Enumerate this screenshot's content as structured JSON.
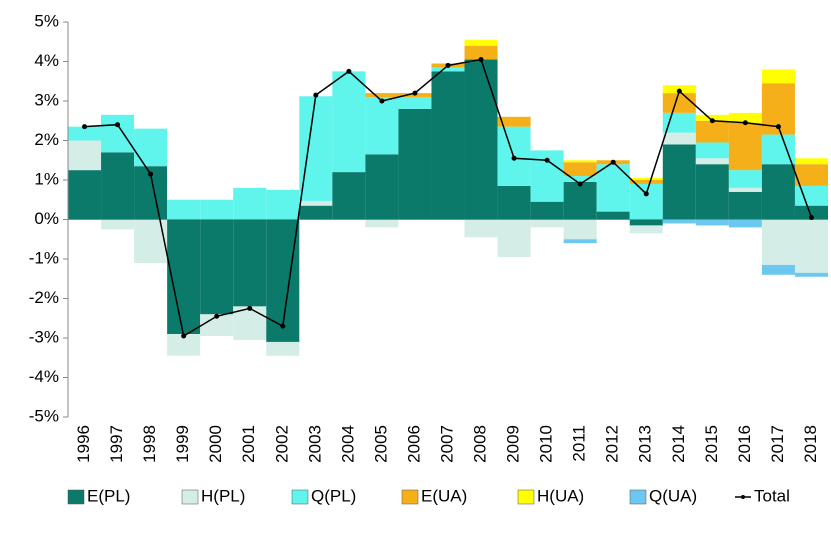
{
  "chart_data": {
    "type": "bar",
    "stacked": true,
    "categories": [
      "1996",
      "1997",
      "1998",
      "1999",
      "2000",
      "2001",
      "2002",
      "2003",
      "2004",
      "2005",
      "2006",
      "2007",
      "2008",
      "2009",
      "2010",
      "2011",
      "2012",
      "2013",
      "2014",
      "2015",
      "2016",
      "2017",
      "2018"
    ],
    "series": [
      {
        "name": "E(PL)",
        "color": "#0b7a6b",
        "values": [
          1.25,
          1.7,
          1.35,
          -2.9,
          -2.4,
          -2.2,
          -3.1,
          0.35,
          1.2,
          1.65,
          2.8,
          3.75,
          4.05,
          0.85,
          0.45,
          0.95,
          0.2,
          -0.15,
          1.9,
          1.4,
          0.7,
          1.4,
          0.35
        ]
      },
      {
        "name": "H(PL)",
        "color": "#d5ede7",
        "values": [
          0.75,
          -0.25,
          -1.1,
          -0.55,
          -0.55,
          -0.85,
          -0.35,
          0.12,
          0,
          -0.2,
          0,
          0,
          -0.45,
          -0.95,
          -0.2,
          -0.5,
          0,
          -0.2,
          0.3,
          0.15,
          0.1,
          -1.15,
          -1.35
        ]
      },
      {
        "name": "Q(PL)",
        "color": "#5ff4ec",
        "values": [
          0.35,
          0.95,
          0.95,
          0.5,
          0.5,
          0.8,
          0.75,
          2.65,
          2.55,
          1.45,
          0.3,
          0.1,
          0,
          1.5,
          1.3,
          0.15,
          1.2,
          0.9,
          0.5,
          0.4,
          0.45,
          0.75,
          0.5
        ]
      },
      {
        "name": "E(UA)",
        "color": "#f5b019",
        "values": [
          0,
          0,
          0,
          0,
          0,
          0,
          0,
          0,
          0,
          0.1,
          0.1,
          0.1,
          0.35,
          0.25,
          0,
          0.35,
          0.1,
          0.1,
          0.5,
          0.55,
          1.2,
          1.3,
          0.55
        ]
      },
      {
        "name": "H(UA)",
        "color": "#ffff00",
        "values": [
          0,
          0,
          0,
          0,
          0,
          0,
          0,
          0,
          0,
          0,
          0,
          0,
          0.15,
          0,
          0,
          0.05,
          0,
          0.05,
          0.2,
          0.15,
          0.25,
          0.35,
          0.15
        ]
      },
      {
        "name": "Q(UA)",
        "color": "#6cc8f0",
        "values": [
          0,
          0,
          0,
          0,
          0,
          0,
          0,
          0,
          0,
          0,
          0,
          0,
          0,
          0,
          0,
          -0.1,
          0,
          0,
          -0.1,
          -0.15,
          -0.2,
          -0.25,
          -0.1
        ]
      },
      {
        "name": "Total",
        "color": "#000000",
        "type": "line",
        "values": [
          2.35,
          2.4,
          1.15,
          -2.95,
          -2.45,
          -2.25,
          -2.7,
          3.15,
          3.75,
          3.0,
          3.2,
          3.9,
          4.05,
          1.55,
          1.5,
          0.9,
          1.45,
          0.65,
          3.25,
          2.5,
          2.45,
          2.35,
          0.05
        ]
      }
    ],
    "ylim": [
      -5,
      5
    ],
    "yticks": [
      {
        "value": -5,
        "label": "-5%"
      },
      {
        "value": -4,
        "label": "-4%"
      },
      {
        "value": -3,
        "label": "-3%"
      },
      {
        "value": -2,
        "label": "-2%"
      },
      {
        "value": -1,
        "label": "-1%"
      },
      {
        "value": 0,
        "label": "0%"
      },
      {
        "value": 1,
        "label": "1%"
      },
      {
        "value": 2,
        "label": "2%"
      },
      {
        "value": 3,
        "label": "3%"
      },
      {
        "value": 4,
        "label": "4%"
      },
      {
        "value": 5,
        "label": "5%"
      }
    ],
    "grid": false,
    "legend": "bottom"
  }
}
